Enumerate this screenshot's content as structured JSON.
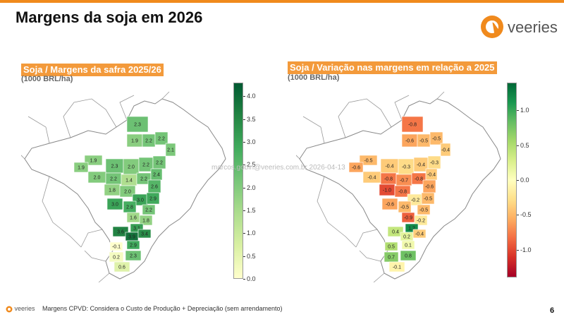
{
  "header": {
    "title": "Margens da soja em 2026",
    "brand": "veeries"
  },
  "left_panel": {
    "title": "Soja / Margens da safra 2025/26",
    "unit": "(1000 BRL/ha)",
    "scale_ticks": [
      "4.0",
      "3.5",
      "3.0",
      "2.5",
      "2.0",
      "1.5",
      "1.0",
      "0.5",
      "0.0"
    ],
    "scale_min": 0,
    "scale_max": 4.3,
    "colors": [
      "#ffffcc",
      "#d9f0a3",
      "#addd8e",
      "#78c679",
      "#41ab5d",
      "#238443",
      "#005a32"
    ],
    "regions": [
      {
        "v": "2.3"
      },
      {
        "v": "1.9"
      },
      {
        "v": "2.2"
      },
      {
        "v": "2.2"
      },
      {
        "v": "2.1"
      },
      {
        "v": "1.9"
      },
      {
        "v": "1.9"
      },
      {
        "v": "2.3"
      },
      {
        "v": "2.0"
      },
      {
        "v": "2.2"
      },
      {
        "v": "2.2"
      },
      {
        "v": "2.0"
      },
      {
        "v": "2.2"
      },
      {
        "v": "1.4"
      },
      {
        "v": "2.2"
      },
      {
        "v": "2.4"
      },
      {
        "v": "1.8"
      },
      {
        "v": "2.0"
      },
      {
        "v": "2.6"
      },
      {
        "v": "3.0"
      },
      {
        "v": "2.9"
      },
      {
        "v": "3.0"
      },
      {
        "v": "2.8"
      },
      {
        "v": "2.2"
      },
      {
        "v": "1.6"
      },
      {
        "v": "1.8"
      },
      {
        "v": "3.1"
      },
      {
        "v": "3.6"
      },
      {
        "v": "3.9"
      },
      {
        "v": "3.4"
      },
      {
        "v": "2.9"
      },
      {
        "v": "-0.1"
      },
      {
        "v": "2.3"
      },
      {
        "v": "0.2"
      },
      {
        "v": "0.6"
      }
    ]
  },
  "right_panel": {
    "title": "Soja / Variação nas margens em relação a 2025",
    "unit": "(1000 BRL/ha)",
    "scale_ticks": [
      "1.0",
      "0.5",
      "0.0",
      "-0.5",
      "-1.0"
    ],
    "scale_min": -1.4,
    "scale_max": 1.4,
    "colors": [
      "#a50026",
      "#d73027",
      "#f46d43",
      "#fdae61",
      "#fee08b",
      "#ffffbf",
      "#d9ef8b",
      "#a6d96a",
      "#66bd63",
      "#1a9850",
      "#006837"
    ],
    "regions": [
      {
        "v": "-0.8"
      },
      {
        "v": "-0.6"
      },
      {
        "v": "-0.5"
      },
      {
        "v": "-0.5"
      },
      {
        "v": "-0.4"
      },
      {
        "v": "-0.5"
      },
      {
        "v": "-0.6"
      },
      {
        "v": "-0.4"
      },
      {
        "v": "-0.3"
      },
      {
        "v": "-0.4"
      },
      {
        "v": "-0.3"
      },
      {
        "v": "-0.4"
      },
      {
        "v": "-0.8"
      },
      {
        "v": "-0.7"
      },
      {
        "v": "-0.8"
      },
      {
        "v": "-0.4"
      },
      {
        "v": "-1.0"
      },
      {
        "v": "-0.8"
      },
      {
        "v": "-0.6"
      },
      {
        "v": "-0.2"
      },
      {
        "v": "-0.5"
      },
      {
        "v": "-0.6"
      },
      {
        "v": "-0.5"
      },
      {
        "v": "-0.5"
      },
      {
        "v": "-0.9"
      },
      {
        "v": "-0.2"
      },
      {
        "v": "1.2"
      },
      {
        "v": "0.4"
      },
      {
        "v": "0.2"
      },
      {
        "v": "-0.4"
      },
      {
        "v": "0.1"
      },
      {
        "v": "0.5"
      },
      {
        "v": "0.8"
      },
      {
        "v": "0.7"
      },
      {
        "v": "-0.1"
      }
    ]
  },
  "watermark": "marcos.gobin@veeries.com.br 2026-04-13",
  "footer": {
    "brand": "veeries",
    "text": "Margens CPVD: Considera o Custo de Produção + Depreciação (sem arrendamento)",
    "page": "6"
  }
}
